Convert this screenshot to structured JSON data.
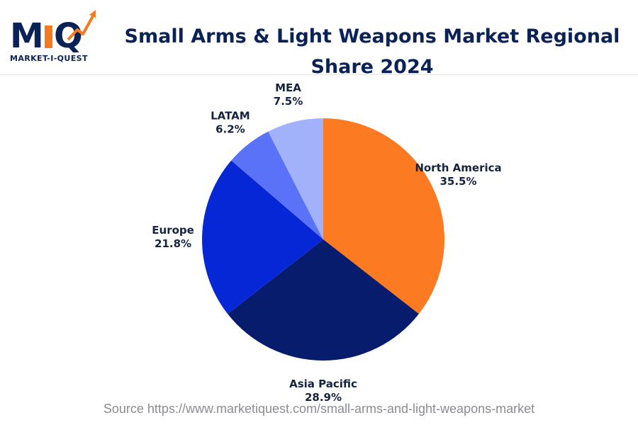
{
  "logo": {
    "letters": "MIQ",
    "tagline": "MARKET-I-QUEST",
    "colors": {
      "navy": "#0a2256",
      "orange": "#f47a20"
    }
  },
  "header": {
    "title": "Small Arms & Light Weapons Market Regional Share 2024"
  },
  "footer": {
    "source": "Source https://www.marketiquest.com/small-arms-and-light-weapons-market"
  },
  "chart_data": {
    "type": "pie",
    "title": "Small Arms & Light Weapons Market Regional Share 2024",
    "unit": "%",
    "slices": [
      {
        "label": "North America",
        "value": 35.5,
        "value_label": "35.5%",
        "color": "#fc7a21"
      },
      {
        "label": "Asia Pacific",
        "value": 28.9,
        "value_label": "28.9%",
        "color": "#081c6e"
      },
      {
        "label": "Europe",
        "value": 21.8,
        "value_label": "21.8%",
        "color": "#0627d6"
      },
      {
        "label": "LATAM",
        "value": 6.2,
        "value_label": "6.2%",
        "color": "#5a72f7"
      },
      {
        "label": "MEA",
        "value": 7.5,
        "value_label": "7.5%",
        "color": "#a1b2fb"
      }
    ],
    "start": "12 o'clock",
    "direction": "clockwise",
    "legend": "none"
  }
}
